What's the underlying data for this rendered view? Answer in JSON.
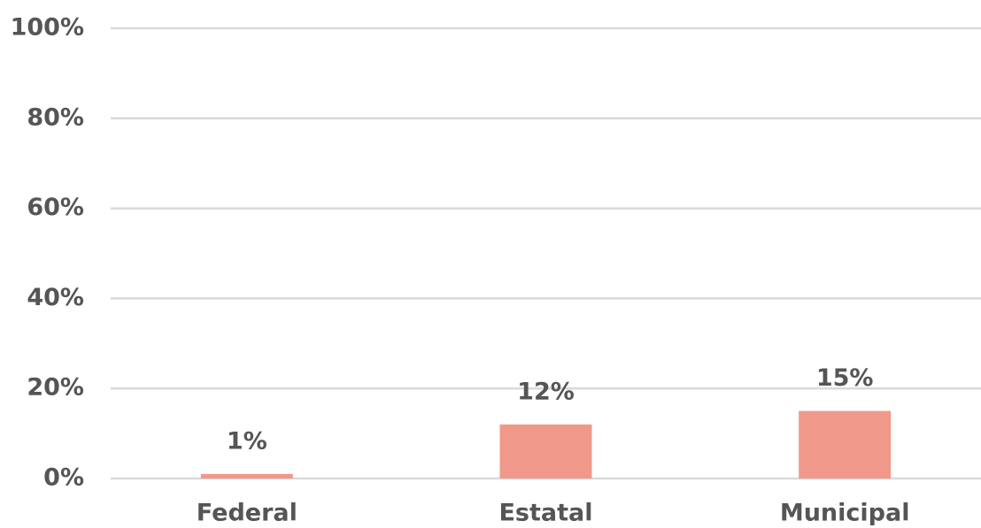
{
  "chart_data": {
    "type": "bar",
    "categories": [
      "Federal",
      "Estatal",
      "Municipal"
    ],
    "values": [
      1,
      12,
      15
    ],
    "value_labels": [
      "1%",
      "12%",
      "15%"
    ],
    "color": "#f0998a",
    "ylim": [
      0,
      100
    ],
    "yticks": [
      {
        "value": 0,
        "label": "0%"
      },
      {
        "value": 20,
        "label": "20%"
      },
      {
        "value": 40,
        "label": "40%"
      },
      {
        "value": 60,
        "label": "60%"
      },
      {
        "value": 80,
        "label": "80%"
      },
      {
        "value": 100,
        "label": "100%"
      }
    ],
    "grid": true
  }
}
